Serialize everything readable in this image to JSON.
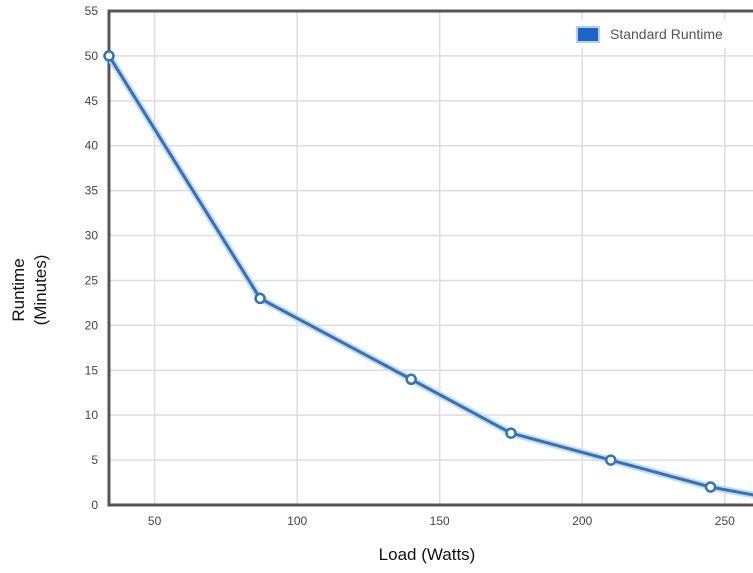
{
  "chart_data": {
    "type": "line",
    "xlabel": "Load (Watts)",
    "ylabel_lines": [
      "Runtime",
      "(Minutes)"
    ],
    "xlim": [
      34,
      262
    ],
    "ylim": [
      0,
      55
    ],
    "x_ticks": [
      50,
      100,
      150,
      200,
      250
    ],
    "y_ticks": [
      0,
      5,
      10,
      15,
      20,
      25,
      30,
      35,
      40,
      45,
      50,
      55
    ],
    "grid": true,
    "legend_position": "top-right",
    "series": [
      {
        "name": "Standard Runtime",
        "color": "#2b74c0",
        "x": [
          34,
          87,
          140,
          175,
          210,
          245,
          262
        ],
        "y": [
          50,
          23,
          14,
          8,
          5,
          2,
          1
        ]
      }
    ]
  }
}
